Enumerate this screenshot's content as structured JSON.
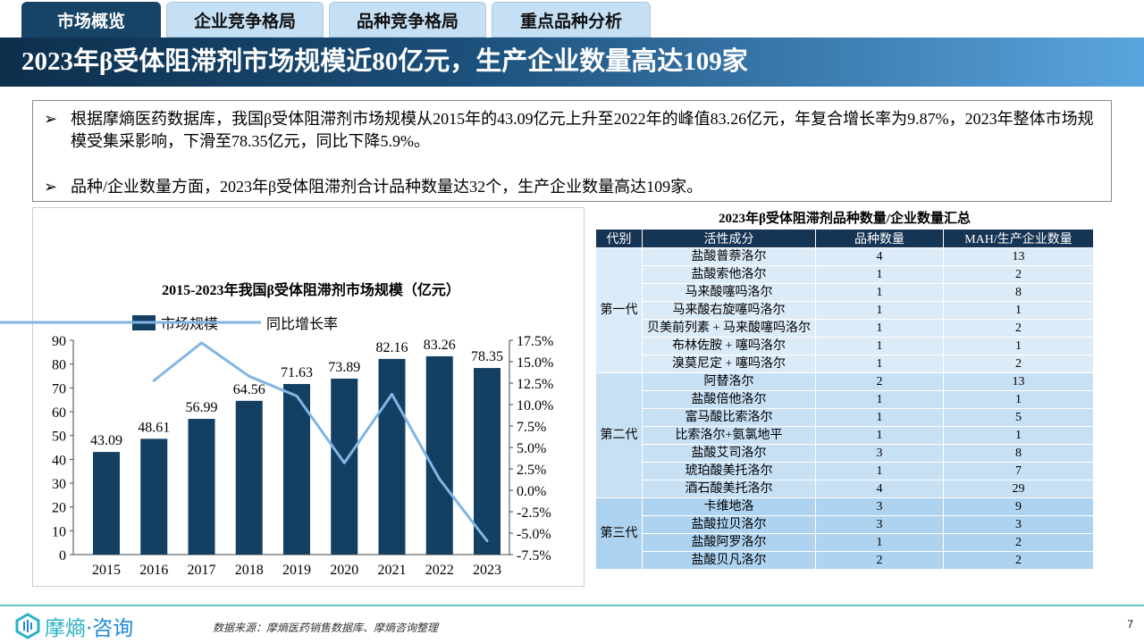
{
  "tabs": [
    "市场概览",
    "企业竞争格局",
    "品种竞争格局",
    "重点品种分析"
  ],
  "title": "2023年β受体阻滞剂市场规模近80亿元，生产企业数量高达109家",
  "bullets": [
    "根据摩熵医药数据库，我国β受体阻滞剂市场规模从2015年的43.09亿元上升至2022年的峰值83.26亿元，年复合增长率为9.87%，2023年整体市场规模受集采影响，下滑至78.35亿元，同比下降5.9%。",
    "品种/企业数量方面，2023年β受体阻滞剂合计品种数量达32个，生产企业数量高达109家。"
  ],
  "bullet_icon": "arrow-right-icon",
  "chart_data": {
    "type": "bar+line",
    "title": "2015-2023年我国β受体阻滞剂市场规模（亿元）",
    "categories": [
      "2015",
      "2016",
      "2017",
      "2018",
      "2019",
      "2020",
      "2021",
      "2022",
      "2023"
    ],
    "series": [
      {
        "name": "市场规模",
        "type": "bar",
        "axis": "left",
        "color": "#133f63",
        "values": [
          43.09,
          48.61,
          56.99,
          64.56,
          71.63,
          73.89,
          82.16,
          83.26,
          78.35
        ]
      },
      {
        "name": "同比增长率",
        "type": "line",
        "axis": "right",
        "color": "#7fb6e4",
        "values": [
          null,
          12.8,
          17.2,
          13.3,
          11.0,
          3.2,
          11.2,
          1.3,
          -5.9
        ]
      }
    ],
    "ylim_left": [
      0,
      90
    ],
    "yticks_left": [
      "0",
      "10",
      "20",
      "30",
      "40",
      "50",
      "60",
      "70",
      "80",
      "90"
    ],
    "ylim_right": [
      -7.5,
      17.5
    ],
    "yticks_right": [
      "-7.5%",
      "-5.0%",
      "-2.5%",
      "0.0%",
      "2.5%",
      "5.0%",
      "7.5%",
      "10.0%",
      "12.5%",
      "15.0%",
      "17.5%"
    ],
    "legend_position": "top-left",
    "grid": false
  },
  "table": {
    "title": "2023年β受体阻滞剂品种数量/企业数量汇总",
    "headers": [
      "代别",
      "活性成分",
      "品种数量",
      "MAH/生产企业数量"
    ],
    "groups": [
      {
        "name": "第一代",
        "rows": [
          [
            "盐酸普萘洛尔",
            "4",
            "13"
          ],
          [
            "盐酸索他洛尔",
            "1",
            "2"
          ],
          [
            "马来酸噻吗洛尔",
            "1",
            "8"
          ],
          [
            "马来酸右旋噻吗洛尔",
            "1",
            "1"
          ],
          [
            "贝美前列素 + 马来酸噻吗洛尔",
            "1",
            "2"
          ],
          [
            "布林佐胺 + 噻吗洛尔",
            "1",
            "1"
          ],
          [
            "溴莫尼定 + 噻吗洛尔",
            "1",
            "2"
          ]
        ]
      },
      {
        "name": "第二代",
        "rows": [
          [
            "阿替洛尔",
            "2",
            "13"
          ],
          [
            "盐酸倍他洛尔",
            "1",
            "1"
          ],
          [
            "富马酸比索洛尔",
            "1",
            "5"
          ],
          [
            "比索洛尔+氨氯地平",
            "1",
            "1"
          ],
          [
            "盐酸艾司洛尔",
            "3",
            "8"
          ],
          [
            "琥珀酸美托洛尔",
            "1",
            "7"
          ],
          [
            "酒石酸美托洛尔",
            "4",
            "29"
          ]
        ]
      },
      {
        "name": "第三代",
        "rows": [
          [
            "卡维地洛",
            "3",
            "9"
          ],
          [
            "盐酸拉贝洛尔",
            "3",
            "3"
          ],
          [
            "盐酸阿罗洛尔",
            "1",
            "2"
          ],
          [
            "盐酸贝凡洛尔",
            "2",
            "2"
          ]
        ]
      }
    ]
  },
  "footer": {
    "logo": "摩熵·咨询",
    "source": "数据来源：摩熵医药销售数据库、摩熵咨询整理",
    "page": "7"
  }
}
